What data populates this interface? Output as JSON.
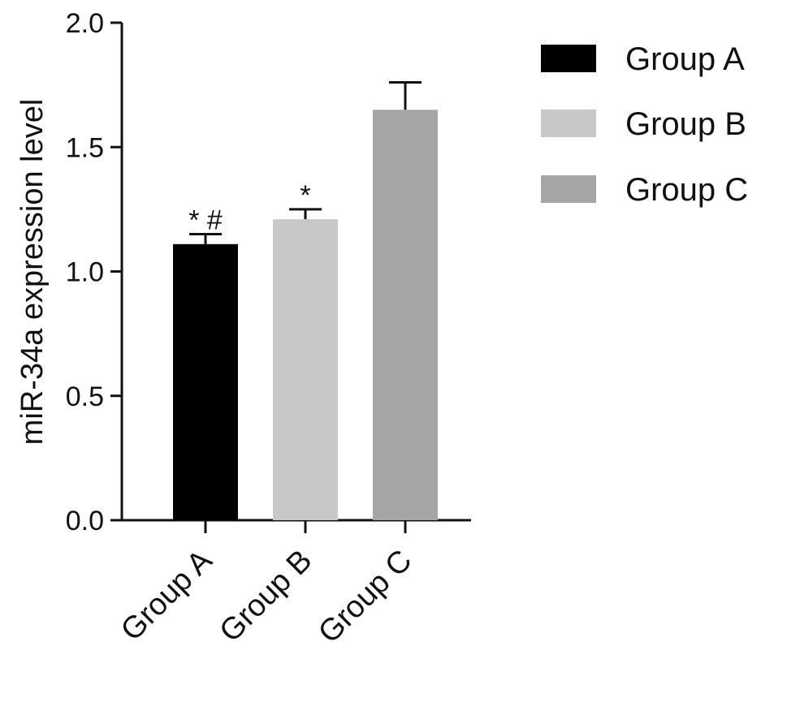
{
  "chart_data": {
    "type": "bar",
    "title": "",
    "xlabel": "",
    "ylabel": "miR-34a expression level",
    "ylim": [
      0,
      2.0
    ],
    "yticks": [
      "0.0",
      "0.5",
      "1.0",
      "1.5",
      "2.0"
    ],
    "ytick_values": [
      0,
      0.5,
      1.0,
      1.5,
      2.0
    ],
    "categories": [
      "Group A",
      "Group B",
      "Group C"
    ],
    "values": [
      1.11,
      1.21,
      1.65
    ],
    "error": [
      0.04,
      0.04,
      0.11
    ],
    "annotations": [
      "* #",
      "*",
      ""
    ],
    "colors": [
      "#000000",
      "#c8c8c8",
      "#a6a6a6"
    ],
    "grid": false,
    "legend": {
      "position": "top-right",
      "entries": [
        "Group A",
        "Group B",
        "Group C"
      ]
    }
  }
}
